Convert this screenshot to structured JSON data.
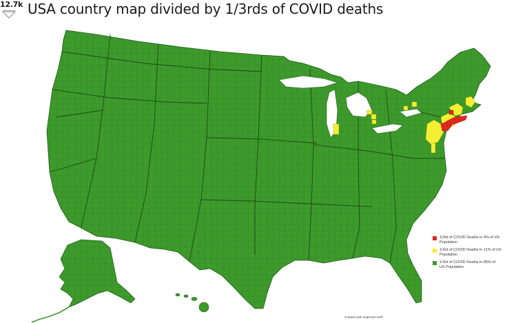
{
  "post": {
    "vote_count": "12.7k",
    "title": "USA country map divided by 1/3rds of COVID deaths"
  },
  "map": {
    "legend": [
      {
        "label": "1/3rd of COVID Deaths in 4% of US Population",
        "color": "#e0261d"
      },
      {
        "label": "1/3rd of COVID Deaths in 11% of US Population",
        "color": "#f4ef33"
      },
      {
        "label": "1/3rd of COVID Deaths in 85% of US Population",
        "color": "#3d9a2b"
      }
    ],
    "credit": "Created with mapchart.net®",
    "colors": {
      "land": "#3d9a2b",
      "border": "#1f5a18",
      "red": "#e0261d",
      "yellow": "#f4ef33"
    }
  }
}
